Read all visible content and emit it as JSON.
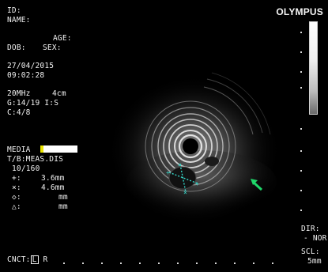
{
  "brand": "OLYMPUS",
  "patient": {
    "id_label": "ID:",
    "name_label": "NAME:",
    "age_label": "AGE:",
    "dob_label": "DOB:",
    "sex_label": "SEX:"
  },
  "exam": {
    "date": "27/04/2015",
    "time": "09:02:28"
  },
  "settings": {
    "frequency": "20MHz",
    "depth": "4cm",
    "gain": "G:14/19 I:S",
    "contrast": "C:4/8"
  },
  "media": {
    "label": "MEDIA"
  },
  "measurements": {
    "mode": "T/B:MEAS.DIS",
    "count": "10/160",
    "rows": [
      {
        "symbol": "+:",
        "value": "3.6mm"
      },
      {
        "symbol": "×:",
        "value": "4.6mm"
      },
      {
        "symbol": "◇:",
        "value": "mm"
      },
      {
        "symbol": "△:",
        "value": "mm"
      }
    ]
  },
  "connection": {
    "label": "CNCT:",
    "box": "L",
    "suffix": " R"
  },
  "display": {
    "dir_label": "DIR:",
    "dir_value": "- NOR",
    "scl_label": "SCL:",
    "scl_value": "5mm"
  },
  "colors": {
    "caliper": "#35d6c8",
    "arrow": "#1fd86a",
    "media_indicator": "#e9e400"
  }
}
